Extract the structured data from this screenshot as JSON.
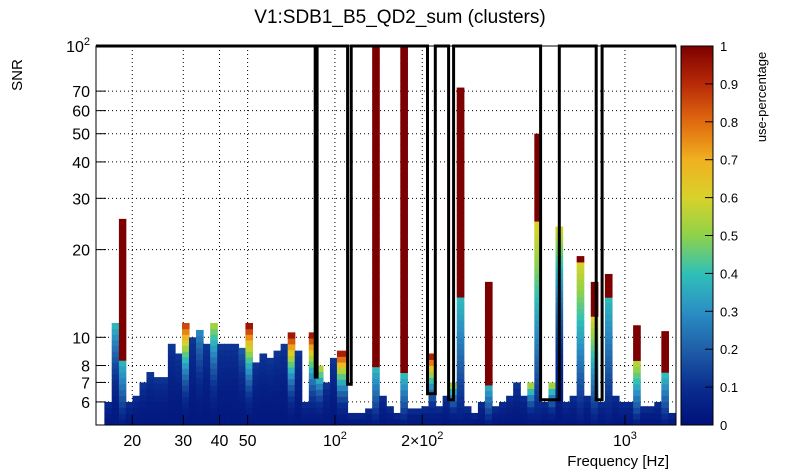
{
  "chart_data": {
    "type": "heatmap",
    "title": "V1:SDB1_B5_QD2_sum (clusters)",
    "xlabel": "Frequency [Hz]",
    "ylabel": "SNR",
    "xscale": "log",
    "yscale": "log",
    "xlim": [
      15,
      1500
    ],
    "ylim": [
      5,
      100
    ],
    "grid": true,
    "x_ticks": [
      {
        "value": 20,
        "label": "20"
      },
      {
        "value": 30,
        "label": "30"
      },
      {
        "value": 40,
        "label": "40"
      },
      {
        "value": 50,
        "label": "50"
      },
      {
        "value": 100,
        "label": "10",
        "exp": "2"
      },
      {
        "value": 200,
        "label": "2×10",
        "exp": "2"
      },
      {
        "value": 1000,
        "label": "10",
        "exp": "3"
      }
    ],
    "y_ticks": [
      {
        "value": 6,
        "label": "6"
      },
      {
        "value": 7,
        "label": "7"
      },
      {
        "value": 8,
        "label": "8"
      },
      {
        "value": 10,
        "label": "10"
      },
      {
        "value": 20,
        "label": "20"
      },
      {
        "value": 30,
        "label": "30"
      },
      {
        "value": 40,
        "label": "40"
      },
      {
        "value": 50,
        "label": "50"
      },
      {
        "value": 60,
        "label": "60"
      },
      {
        "value": 70,
        "label": "70"
      },
      {
        "value": 100,
        "label": "10",
        "exp": "2"
      }
    ],
    "colorbar": {
      "label": "use-percentage",
      "range": [
        0,
        1
      ],
      "ticks": [
        "0",
        "0.1",
        "0.2",
        "0.3",
        "0.4",
        "0.5",
        "0.6",
        "0.7",
        "0.8",
        "0.9",
        "1"
      ]
    },
    "columns": [
      {
        "f": 16.5,
        "top": 6.0,
        "peak": 0.1
      },
      {
        "f": 17.5,
        "top": 11.2,
        "peak": 0.4
      },
      {
        "f": 18.5,
        "top": 25.5,
        "peak": 1.0,
        "hot_from": 8.5
      },
      {
        "f": 19.5,
        "top": 6.0,
        "peak": 0.1
      },
      {
        "f": 20.6,
        "top": 6.3,
        "peak": 0.1
      },
      {
        "f": 21.8,
        "top": 7.0,
        "peak": 0.12
      },
      {
        "f": 23.0,
        "top": 7.6,
        "peak": 0.12
      },
      {
        "f": 24.4,
        "top": 7.3,
        "peak": 0.12
      },
      {
        "f": 25.8,
        "top": 7.3,
        "peak": 0.12
      },
      {
        "f": 27.3,
        "top": 9.5,
        "peak": 0.12
      },
      {
        "f": 28.9,
        "top": 8.8,
        "peak": 0.12
      },
      {
        "f": 30.5,
        "top": 11.2,
        "peak": 0.9
      },
      {
        "f": 32.3,
        "top": 10.0,
        "peak": 0.12
      },
      {
        "f": 34.1,
        "top": 10.6,
        "peak": 0.3
      },
      {
        "f": 36.1,
        "top": 9.5,
        "peak": 0.12
      },
      {
        "f": 38.2,
        "top": 11.2,
        "peak": 0.55
      },
      {
        "f": 40.4,
        "top": 9.5,
        "peak": 0.12
      },
      {
        "f": 42.7,
        "top": 9.5,
        "peak": 0.12
      },
      {
        "f": 45.2,
        "top": 9.5,
        "peak": 0.12
      },
      {
        "f": 47.8,
        "top": 9.2,
        "peak": 0.2
      },
      {
        "f": 50.5,
        "top": 11.2,
        "peak": 1.0
      },
      {
        "f": 53.4,
        "top": 8.2,
        "peak": 0.12
      },
      {
        "f": 56.5,
        "top": 8.8,
        "peak": 0.12
      },
      {
        "f": 59.7,
        "top": 8.5,
        "peak": 0.12
      },
      {
        "f": 63.2,
        "top": 9.0,
        "peak": 0.12
      },
      {
        "f": 66.8,
        "top": 9.5,
        "peak": 0.12
      },
      {
        "f": 70.7,
        "top": 10.4,
        "peak": 1.0
      },
      {
        "f": 74.7,
        "top": 9.0,
        "peak": 0.12
      },
      {
        "f": 79.0,
        "top": 6.0,
        "peak": 0.1
      },
      {
        "f": 83.6,
        "top": 10.4,
        "peak": 1.0
      },
      {
        "f": 88.4,
        "top": 8.0,
        "peak": 0.6
      },
      {
        "f": 93.5,
        "top": 7.0,
        "peak": 0.12
      },
      {
        "f": 98.8,
        "top": 8.5,
        "peak": 0.12
      },
      {
        "f": 104.5,
        "top": 9.0,
        "peak": 1.0
      },
      {
        "f": 116.8,
        "top": 5.5,
        "peak": 0.1
      },
      {
        "f": 123.6,
        "top": 5.5,
        "peak": 0.1
      },
      {
        "f": 130.7,
        "top": 5.7,
        "peak": 0.1
      },
      {
        "f": 138.2,
        "top": 100,
        "peak": 1.0,
        "hot_from": 8.0
      },
      {
        "f": 146.1,
        "top": 6.3,
        "peak": 0.1
      },
      {
        "f": 154.5,
        "top": 5.8,
        "peak": 0.1
      },
      {
        "f": 163.4,
        "top": 5.5,
        "peak": 0.1
      },
      {
        "f": 172.8,
        "top": 100,
        "peak": 1.0,
        "hot_from": 7.5
      },
      {
        "f": 182.8,
        "top": 5.7,
        "peak": 0.1
      },
      {
        "f": 193.3,
        "top": 5.7,
        "peak": 0.1
      },
      {
        "f": 204.4,
        "top": 5.8,
        "peak": 0.1
      },
      {
        "f": 216.2,
        "top": 8.8,
        "peak": 1.0
      },
      {
        "f": 228.7,
        "top": 5.8,
        "peak": 0.1
      },
      {
        "f": 241.8,
        "top": 6.3,
        "peak": 0.1
      },
      {
        "f": 255.7,
        "top": 7.0,
        "peak": 0.6
      },
      {
        "f": 270.5,
        "top": 72,
        "peak": 1.0,
        "hot_from": 14.0
      },
      {
        "f": 286.1,
        "top": 5.8,
        "peak": 0.1
      },
      {
        "f": 302.6,
        "top": 5.5,
        "peak": 0.1
      },
      {
        "f": 320.0,
        "top": 6.0,
        "peak": 0.1
      },
      {
        "f": 338.4,
        "top": 15.5,
        "peak": 1.0,
        "hot_from": 7.0
      },
      {
        "f": 357.9,
        "top": 5.8,
        "peak": 0.1
      },
      {
        "f": 378.5,
        "top": 6.0,
        "peak": 0.1
      },
      {
        "f": 400.3,
        "top": 6.3,
        "peak": 0.1
      },
      {
        "f": 423.4,
        "top": 7.0,
        "peak": 0.12
      },
      {
        "f": 447.8,
        "top": 6.3,
        "peak": 0.1
      },
      {
        "f": 473.6,
        "top": 7.0,
        "peak": 0.6
      },
      {
        "f": 500.9,
        "top": 50,
        "peak": 1.0,
        "hot_from": 25.0,
        "mid_color": 0.62
      },
      {
        "f": 529.7,
        "top": 6.0,
        "peak": 0.1
      },
      {
        "f": 560.3,
        "top": 7.0,
        "peak": 0.6
      },
      {
        "f": 592.6,
        "top": 24,
        "peak": 0.6,
        "mid_color": 0.6
      },
      {
        "f": 626.7,
        "top": 6.0,
        "peak": 0.1
      },
      {
        "f": 662.8,
        "top": 6.3,
        "peak": 0.1
      },
      {
        "f": 701.0,
        "top": 19,
        "peak": 1.0,
        "hot_from": 18.0,
        "mid_color": 0.6
      },
      {
        "f": 741.4,
        "top": 6.3,
        "peak": 0.1
      },
      {
        "f": 784.1,
        "top": 15.5,
        "peak": 1.0,
        "hot_from": 12.0,
        "mid_color": 0.62
      },
      {
        "f": 829.3,
        "top": 6.0,
        "peak": 0.1
      },
      {
        "f": 877.1,
        "top": 16.5,
        "peak": 1.0,
        "hot_from": 14.0
      },
      {
        "f": 927.6,
        "top": 6.3,
        "peak": 0.1
      },
      {
        "f": 981.1,
        "top": 6.0,
        "peak": 0.1
      },
      {
        "f": 1037.6,
        "top": 6.0,
        "peak": 0.1
      },
      {
        "f": 1097.4,
        "top": 11.0,
        "peak": 1.0,
        "hot_from": 8.5,
        "mid_color": 0.6
      },
      {
        "f": 1160.6,
        "top": 5.8,
        "peak": 0.1
      },
      {
        "f": 1227.5,
        "top": 5.8,
        "peak": 0.1
      },
      {
        "f": 1298.2,
        "top": 6.0,
        "peak": 0.1
      },
      {
        "f": 1373.0,
        "top": 10.5,
        "peak": 1.0,
        "hot_from": 7.5
      },
      {
        "f": 1452.1,
        "top": 5.5,
        "peak": 0.1
      }
    ],
    "outlined_regions": [
      {
        "f_from": 15,
        "f_to": 85.5,
        "snr_bottom": 100
      },
      {
        "f_from": 85.5,
        "f_to": 86.8,
        "snr_bottom": 7.3
      },
      {
        "f_from": 86.8,
        "f_to": 110.6,
        "snr_bottom": 100
      },
      {
        "f_from": 110.6,
        "f_to": 113.8,
        "snr_bottom": 6.9
      },
      {
        "f_from": 113.8,
        "f_to": 208.5,
        "snr_bottom": 100
      },
      {
        "f_from": 208.5,
        "f_to": 221.8,
        "snr_bottom": 6.4
      },
      {
        "f_from": 221.8,
        "f_to": 246.5,
        "snr_bottom": 100
      },
      {
        "f_from": 246.5,
        "f_to": 256.5,
        "snr_bottom": 6.1
      },
      {
        "f_from": 256.5,
        "f_to": 512.0,
        "snr_bottom": 100
      },
      {
        "f_from": 512.0,
        "f_to": 594.0,
        "snr_bottom": 6.1
      },
      {
        "f_from": 594.0,
        "f_to": 796.0,
        "snr_bottom": 100
      },
      {
        "f_from": 796.0,
        "f_to": 834.0,
        "snr_bottom": 6.1
      },
      {
        "f_from": 834.0,
        "f_to": 1500,
        "snr_bottom": 100
      }
    ]
  }
}
